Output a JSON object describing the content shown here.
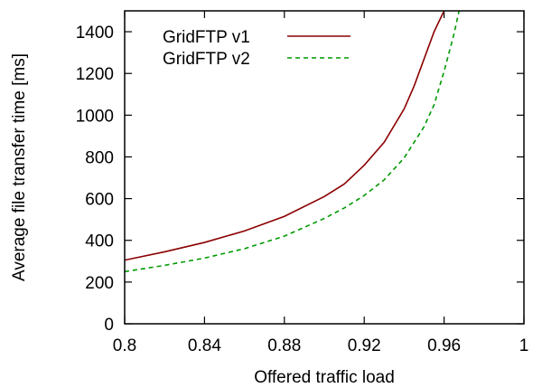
{
  "chart_data": {
    "type": "line",
    "title": "",
    "xlabel": "Offered traffic load",
    "ylabel": "Average file transfer time [ms]",
    "xlim": [
      0.8,
      1.0
    ],
    "ylim": [
      0,
      1500
    ],
    "x_ticks": [
      0.8,
      0.84,
      0.88,
      0.92,
      0.96,
      1.0
    ],
    "x_tick_labels": [
      "0.8",
      "0.84",
      "0.88",
      "0.92",
      "0.96",
      "1"
    ],
    "y_ticks": [
      0,
      200,
      400,
      600,
      800,
      1000,
      1200,
      1400
    ],
    "y_tick_labels": [
      "0",
      "200",
      "400",
      "600",
      "800",
      "1000",
      "1200",
      "1400"
    ],
    "grid": false,
    "legend_position": "top-left",
    "series": [
      {
        "name": "GridFTP v1",
        "color": "#8b0000",
        "style": "solid",
        "x": [
          0.8,
          0.82,
          0.84,
          0.86,
          0.88,
          0.9,
          0.91,
          0.92,
          0.93,
          0.94,
          0.945,
          0.95,
          0.955,
          0.9575,
          0.96
        ],
        "y": [
          305,
          345,
          390,
          445,
          515,
          610,
          670,
          760,
          870,
          1030,
          1140,
          1270,
          1400,
          1450,
          1500
        ]
      },
      {
        "name": "GridFTP v2",
        "color": "#009900",
        "style": "dashed",
        "x": [
          0.8,
          0.82,
          0.84,
          0.86,
          0.88,
          0.9,
          0.91,
          0.92,
          0.93,
          0.94,
          0.95,
          0.955,
          0.96,
          0.965,
          0.9675
        ],
        "y": [
          250,
          280,
          315,
          360,
          420,
          505,
          555,
          615,
          690,
          795,
          945,
          1050,
          1210,
          1390,
          1500
        ]
      }
    ]
  }
}
